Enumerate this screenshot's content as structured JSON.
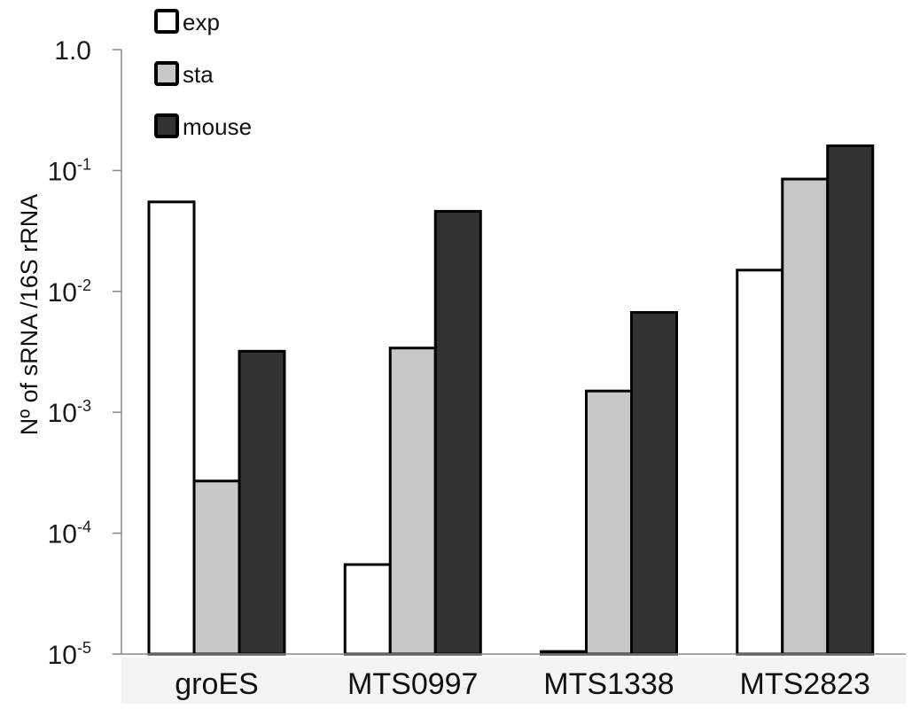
{
  "chart_data": {
    "type": "bar",
    "title": "",
    "xlabel": "",
    "ylabel": "Nº of sRNA /16S rRNA",
    "yscale": "log",
    "ylim": [
      1e-05,
      1.0
    ],
    "yticks": [
      {
        "value": 1.0,
        "base": "1.0",
        "exp": ""
      },
      {
        "value": 0.1,
        "base": "10",
        "exp": "-1"
      },
      {
        "value": 0.01,
        "base": "10",
        "exp": "-2"
      },
      {
        "value": 0.001,
        "base": "10",
        "exp": "-3"
      },
      {
        "value": 0.0001,
        "base": "10",
        "exp": "-4"
      },
      {
        "value": 1e-05,
        "base": "10",
        "exp": "-5"
      }
    ],
    "categories": [
      "groES",
      "MTS0997",
      "MTS1338",
      "MTS2823"
    ],
    "series": [
      {
        "name": "exp",
        "color": "#ffffff",
        "values": [
          0.055,
          5.5e-05,
          1.05e-05,
          0.015
        ]
      },
      {
        "name": "sta",
        "color": "#c8c8c8",
        "values": [
          0.00027,
          0.0034,
          0.0015,
          0.085
        ]
      },
      {
        "name": "mouse",
        "color": "#333333",
        "values": [
          0.0032,
          0.046,
          0.0067,
          0.16
        ]
      }
    ],
    "legend_position": "top-left",
    "grid": false
  }
}
